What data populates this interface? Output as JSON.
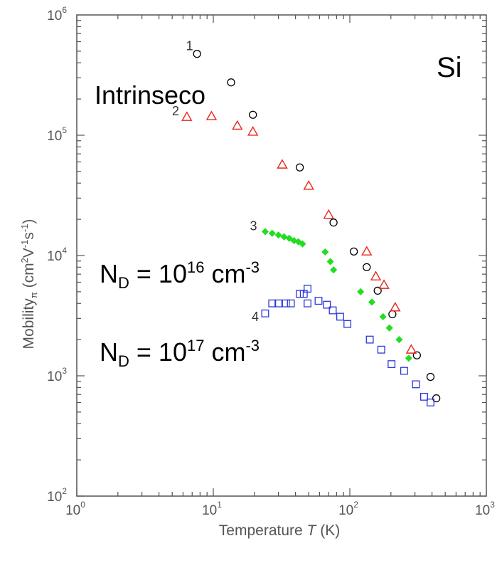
{
  "chart_data": {
    "type": "scatter",
    "x_scale": "log",
    "y_scale": "log",
    "xlim": [
      1,
      1000
    ],
    "ylim": [
      100,
      1000000
    ],
    "xlabel": {
      "text": "Temperature",
      "var": "T",
      "unit": "(K)"
    },
    "ylabel": {
      "text": "Mobility",
      "sub": "π",
      "unit": "(cm",
      "unit_sup1": "2",
      "unit_mid1": "V",
      "unit_sup2": "-1",
      "unit_mid2": "s",
      "unit_sup3": "-1",
      "unit_end": ")"
    },
    "x_ticks": [
      {
        "base": "10",
        "exp": "0",
        "value": 1
      },
      {
        "base": "10",
        "exp": "1",
        "value": 10
      },
      {
        "base": "10",
        "exp": "2",
        "value": 100
      },
      {
        "base": "10",
        "exp": "3",
        "value": 1000
      }
    ],
    "y_ticks": [
      {
        "base": "10",
        "exp": "2",
        "value": 100
      },
      {
        "base": "10",
        "exp": "3",
        "value": 1000
      },
      {
        "base": "10",
        "exp": "4",
        "value": 10000
      },
      {
        "base": "10",
        "exp": "5",
        "value": 100000
      },
      {
        "base": "10",
        "exp": "6",
        "value": 1000000
      }
    ],
    "annotations": {
      "material": "Si",
      "intrinsic": "Intrinseco",
      "nd16": {
        "prefix": "N",
        "sub": "D",
        "middle": " = 10",
        "exp": "16",
        "unit": " cm",
        "unit_exp": "-3"
      },
      "nd17": {
        "prefix": "N",
        "sub": "D",
        "middle": " = 10",
        "exp": "17",
        "unit": " cm",
        "unit_exp": "-3"
      }
    },
    "series": [
      {
        "label": "1",
        "marker": "circle",
        "color": "#000000",
        "points": [
          [
            7.6,
            475000
          ],
          [
            13.5,
            275000
          ],
          [
            19.5,
            148000
          ],
          [
            43,
            54000
          ],
          [
            76,
            18800
          ],
          [
            107,
            10800
          ],
          [
            133,
            8000
          ],
          [
            160,
            5100
          ],
          [
            205,
            3250
          ],
          [
            310,
            1480
          ],
          [
            390,
            980
          ],
          [
            430,
            650
          ]
        ]
      },
      {
        "label": "2",
        "marker": "triangle",
        "color": "#e8261d",
        "points": [
          [
            6.4,
            142000
          ],
          [
            9.7,
            144000
          ],
          [
            15,
            120000
          ],
          [
            19.5,
            107000
          ],
          [
            32,
            57000
          ],
          [
            50,
            38000
          ],
          [
            70,
            21800
          ],
          [
            133,
            10800
          ],
          [
            155,
            6700
          ],
          [
            178,
            5700
          ],
          [
            215,
            3700
          ],
          [
            282,
            1650
          ]
        ]
      },
      {
        "label": "3",
        "marker": "diamond",
        "color": "#22dd22",
        "points": [
          [
            24,
            15800
          ],
          [
            27,
            15300
          ],
          [
            30,
            14800
          ],
          [
            33,
            14300
          ],
          [
            36,
            13900
          ],
          [
            39,
            13300
          ],
          [
            42,
            13000
          ],
          [
            45,
            12500
          ],
          [
            66,
            10700
          ],
          [
            72,
            8900
          ],
          [
            76,
            7600
          ],
          [
            120,
            5000
          ],
          [
            145,
            4100
          ],
          [
            175,
            3100
          ],
          [
            195,
            2500
          ],
          [
            230,
            2000
          ],
          [
            270,
            1400
          ]
        ]
      },
      {
        "label": "4",
        "marker": "square",
        "color": "#2b35d9",
        "points": [
          [
            24,
            3300
          ],
          [
            27,
            4000
          ],
          [
            30,
            4000
          ],
          [
            34,
            4000
          ],
          [
            37,
            4000
          ],
          [
            43,
            4800
          ],
          [
            46,
            4800
          ],
          [
            49,
            5300
          ],
          [
            49,
            4000
          ],
          [
            59,
            4200
          ],
          [
            68,
            3900
          ],
          [
            75,
            3500
          ],
          [
            85,
            3100
          ],
          [
            96,
            2700
          ],
          [
            140,
            2000
          ],
          [
            170,
            1650
          ],
          [
            202,
            1250
          ],
          [
            250,
            1100
          ],
          [
            305,
            850
          ],
          [
            350,
            670
          ],
          [
            390,
            600
          ]
        ]
      }
    ],
    "series_label_positions": {
      "1": [
        6.7,
        510000
      ],
      "2": [
        5.3,
        146000
      ],
      "3": [
        19.7,
        16200
      ],
      "4": [
        20.3,
        2850
      ]
    }
  }
}
